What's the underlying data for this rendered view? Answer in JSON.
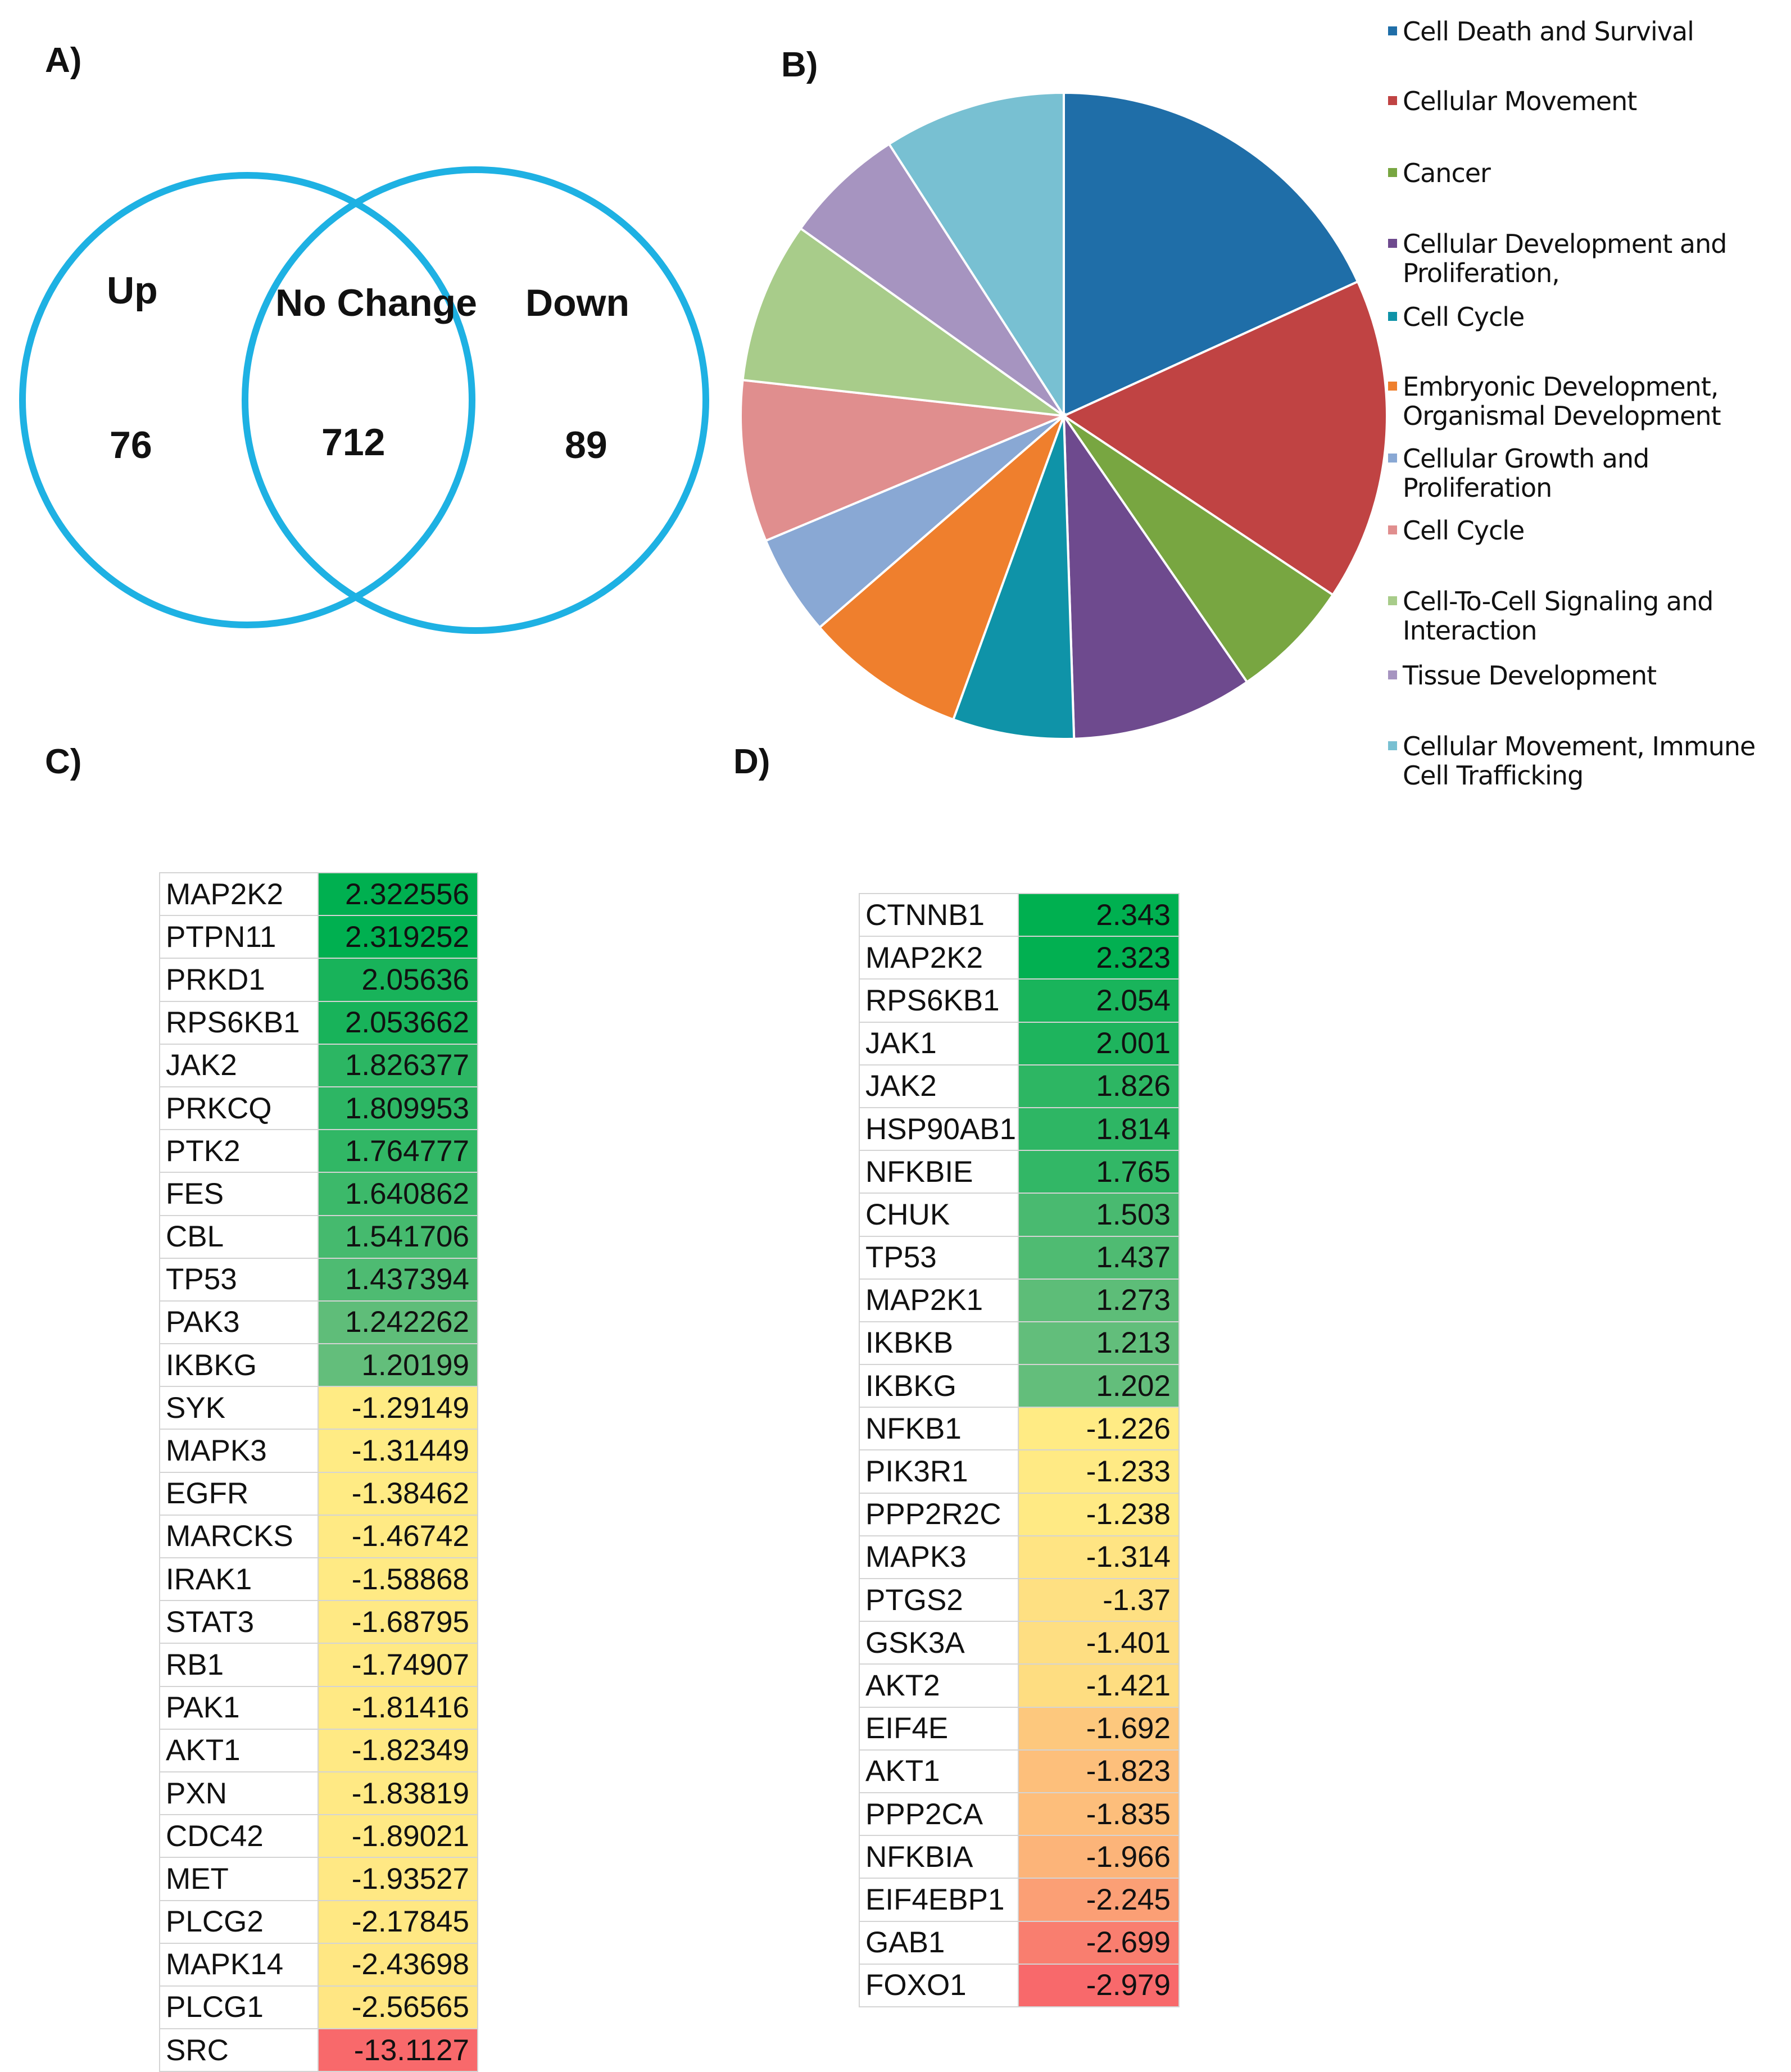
{
  "panels": {
    "a": "A)",
    "b": "B)",
    "c": "C)",
    "d": "D)"
  },
  "colors": {
    "venn_stroke": "#1eb1e3",
    "up_scale": [
      "#63be7b",
      "#00b050"
    ],
    "down_scale": [
      "#ffeb84",
      "#f8696b"
    ]
  },
  "chart_data": [
    {
      "type": "venn",
      "sets": [
        {
          "label": "Up",
          "count": "76"
        },
        {
          "label": "No Change",
          "count": "712"
        },
        {
          "label": "Down",
          "count": "89"
        }
      ]
    },
    {
      "type": "pie",
      "slices": [
        {
          "label": "Cell Death and Survival",
          "value": 18,
          "color": "#1f6ea8"
        },
        {
          "label": "Cellular Movement",
          "value": 16,
          "color": "#c04343"
        },
        {
          "label": "Cancer",
          "value": 6,
          "color": "#78a641"
        },
        {
          "label": "Cellular Development and Proliferation,",
          "value": 9,
          "color": "#6e4a8e"
        },
        {
          "label": "Cell Cycle",
          "value": 6,
          "color": "#0f93a8"
        },
        {
          "label": "Embryonic Development, Organismal Development",
          "value": 8,
          "color": "#ef7f2d"
        },
        {
          "label": "Cellular Growth and Proliferation",
          "value": 5,
          "color": "#89a8d4"
        },
        {
          "label": "Cell Cycle",
          "value": 8,
          "color": "#e08e8e"
        },
        {
          "label": "Cell-To-Cell Signaling and Interaction",
          "value": 8,
          "color": "#a8cc8a"
        },
        {
          "label": "Tissue Development",
          "value": 6,
          "color": "#a694c0"
        },
        {
          "label": "Cellular Movement, Immune Cell Trafficking",
          "value": 9,
          "color": "#78c0d2"
        }
      ]
    },
    {
      "type": "table",
      "genes": [
        "MAP2K2",
        "PTPN11",
        "PRKD1",
        "RPS6KB1",
        "JAK2",
        "PRKCQ",
        "PTK2",
        "FES",
        "CBL",
        "TP53",
        "PAK3",
        "IKBKG",
        "SYK",
        "MAPK3",
        "EGFR",
        "MARCKS",
        "IRAK1",
        "STAT3",
        "RB1",
        "PAK1",
        "AKT1",
        "PXN",
        "CDC42",
        "MET",
        "PLCG2",
        "MAPK14",
        "PLCG1",
        "SRC"
      ],
      "values": [
        "2.322556",
        "2.319252",
        "2.05636",
        "2.053662",
        "1.826377",
        "1.809953",
        "1.764777",
        "1.640862",
        "1.541706",
        "1.437394",
        "1.242262",
        "1.20199",
        "-1.29149",
        "-1.31449",
        "-1.38462",
        "-1.46742",
        "-1.58868",
        "-1.68795",
        "-1.74907",
        "-1.81416",
        "-1.82349",
        "-1.83819",
        "-1.89021",
        "-1.93527",
        "-2.17845",
        "-2.43698",
        "-2.56565",
        "-13.1127"
      ]
    },
    {
      "type": "table",
      "genes": [
        "CTNNB1",
        "MAP2K2",
        "RPS6KB1",
        "JAK1",
        "JAK2",
        "HSP90AB1",
        "NFKBIE",
        "CHUK",
        "TP53",
        "MAP2K1",
        "IKBKB",
        "IKBKG",
        "NFKB1",
        "PIK3R1",
        "PPP2R2C",
        "MAPK3",
        "PTGS2",
        "GSK3A",
        "AKT2",
        "EIF4E",
        "AKT1",
        "PPP2CA",
        "NFKBIA",
        "EIF4EBP1",
        "GAB1",
        "FOXO1"
      ],
      "values": [
        "2.343",
        "2.323",
        "2.054",
        "2.001",
        "1.826",
        "1.814",
        "1.765",
        "1.503",
        "1.437",
        "1.273",
        "1.213",
        "1.202",
        "-1.226",
        "-1.233",
        "-1.238",
        "-1.314",
        "-1.37",
        "-1.401",
        "-1.421",
        "-1.692",
        "-1.823",
        "-1.835",
        "-1.966",
        "-2.245",
        "-2.699",
        "-2.979"
      ]
    }
  ]
}
